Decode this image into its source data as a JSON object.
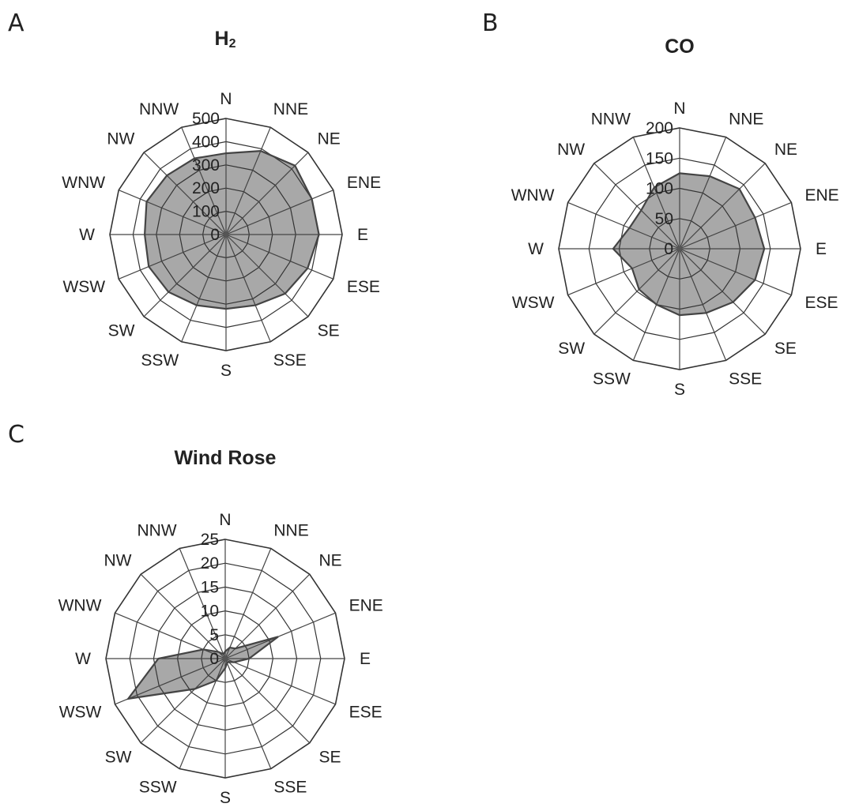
{
  "colors": {
    "fill": "#a8a8a8",
    "outline": "#444444",
    "grid": "#333333",
    "spoke": "#444444",
    "text": "#222222"
  },
  "chart_data": [
    {
      "panel": "A",
      "type": "radar",
      "title": "H",
      "title_sub": "2",
      "categories": [
        "N",
        "NNE",
        "NE",
        "ENE",
        "E",
        "ESE",
        "SE",
        "SSE",
        "S",
        "SSW",
        "SW",
        "WSW",
        "W",
        "WNW",
        "NW",
        "NNW"
      ],
      "ticks": [
        "0",
        "100",
        "200",
        "300",
        "400",
        "500"
      ],
      "ylim": [
        0,
        500
      ],
      "grid": true,
      "values": [
        350,
        390,
        420,
        400,
        400,
        380,
        360,
        330,
        320,
        330,
        350,
        360,
        350,
        370,
        360,
        355
      ]
    },
    {
      "panel": "B",
      "type": "radar",
      "title": "CO",
      "title_sub": "",
      "categories": [
        "N",
        "NNE",
        "NE",
        "ENE",
        "E",
        "ESE",
        "SE",
        "SSE",
        "S",
        "SSW",
        "SW",
        "WSW",
        "W",
        "WNW",
        "NW",
        "NNW"
      ],
      "ticks": [
        "0",
        "50",
        "100",
        "150",
        "200"
      ],
      "ylim": [
        0,
        200
      ],
      "grid": true,
      "values": [
        125,
        130,
        140,
        135,
        140,
        135,
        125,
        115,
        110,
        100,
        95,
        85,
        110,
        90,
        90,
        110
      ]
    },
    {
      "panel": "C",
      "type": "radar",
      "title": "Wind Rose",
      "title_sub": "",
      "categories": [
        "N",
        "NNE",
        "NE",
        "ENE",
        "E",
        "ESE",
        "SE",
        "SSE",
        "S",
        "SSW",
        "SW",
        "WSW",
        "W",
        "WNW",
        "NW",
        "NNW"
      ],
      "ticks": [
        "0",
        "5",
        "10",
        "15",
        "20",
        "25"
      ],
      "ylim": [
        0,
        25
      ],
      "grid": true,
      "values": [
        1.5,
        2.5,
        3,
        12,
        5,
        2,
        1,
        1,
        2,
        5,
        9,
        22,
        14,
        5,
        2,
        1
      ]
    }
  ]
}
